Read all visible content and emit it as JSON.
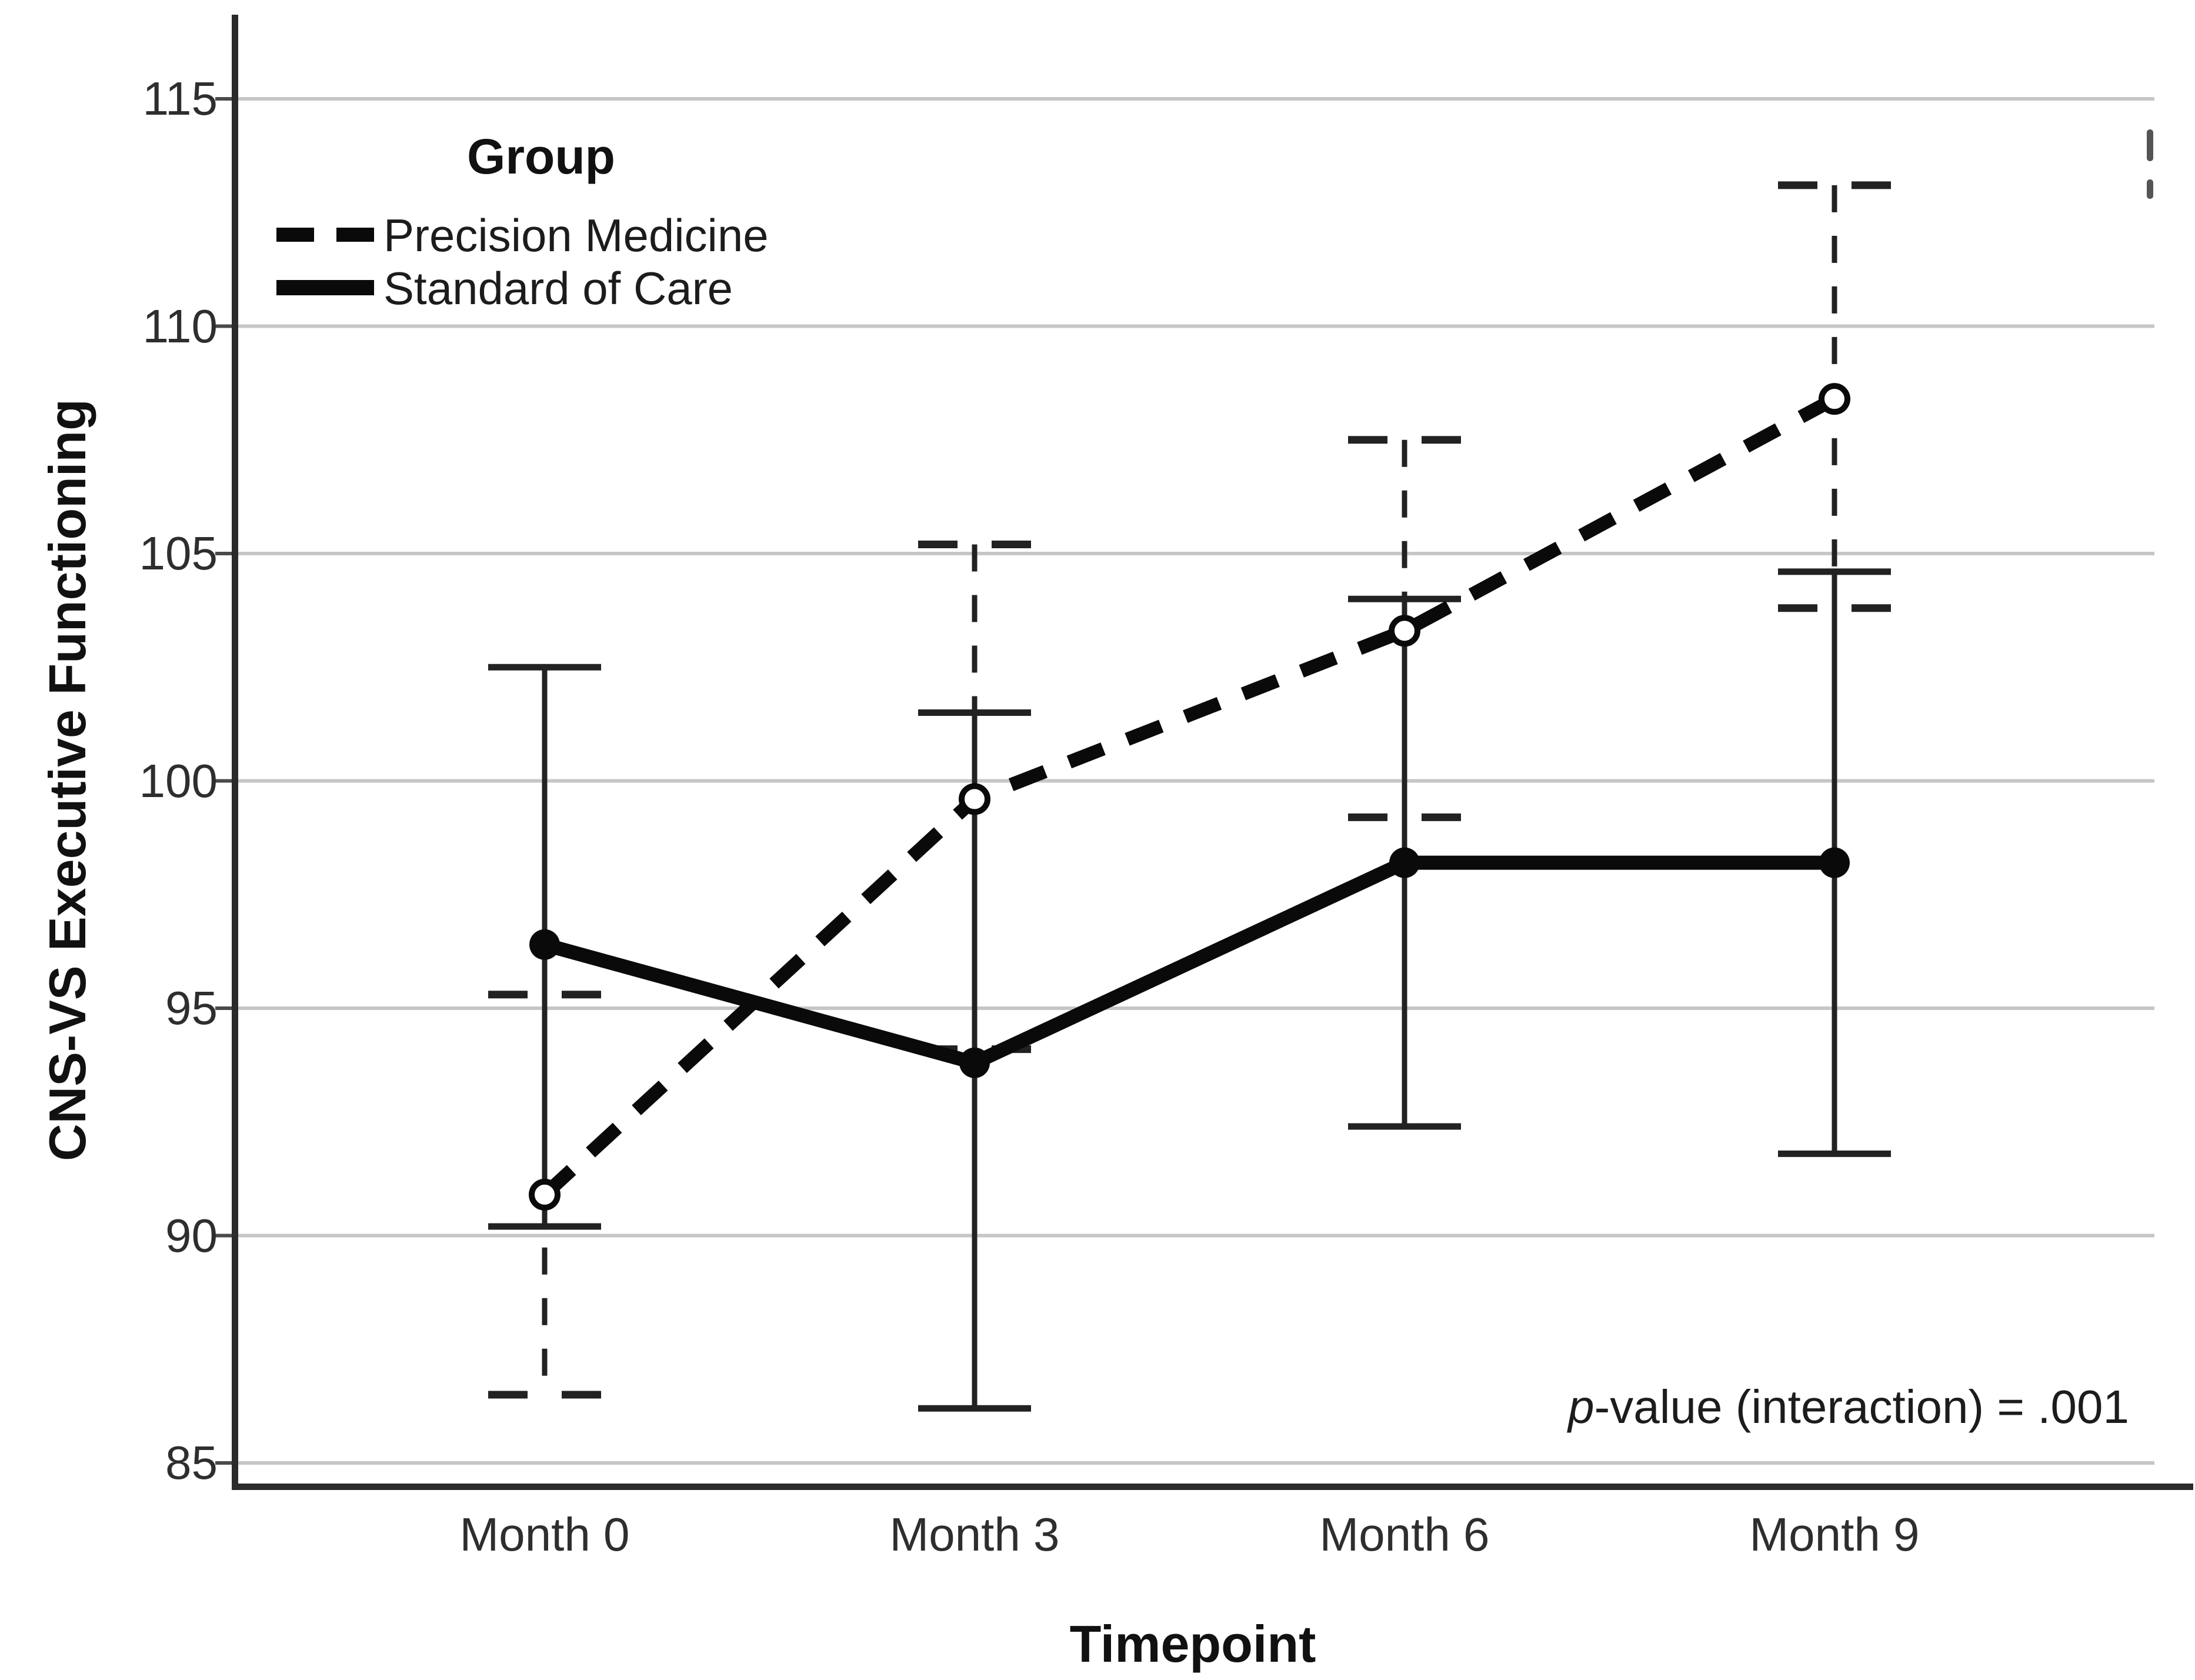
{
  "chart_data": {
    "type": "line",
    "title": "",
    "xlabel": "Timepoint",
    "ylabel": "CNS-VS Executive Functioning",
    "categories": [
      "Month 0",
      "Month 3",
      "Month 6",
      "Month 9"
    ],
    "ylim": [
      85,
      115
    ],
    "yticks": [
      115,
      110,
      105,
      100,
      95,
      90,
      85
    ],
    "grid": "horizontal",
    "legend_title": "Group",
    "legend_position": "top-left-inside",
    "series": [
      {
        "name": "Precision Medicine",
        "line_style": "dashed",
        "marker": "open-circle",
        "means": [
          90.9,
          99.6,
          103.3,
          108.4
        ],
        "ci_lower": [
          86.5,
          94.1,
          99.2,
          103.8
        ],
        "ci_upper": [
          95.3,
          105.2,
          107.5,
          113.1
        ]
      },
      {
        "name": "Standard of Care",
        "line_style": "solid",
        "marker": "filled-circle",
        "means": [
          96.4,
          93.8,
          98.2,
          98.2
        ],
        "ci_lower": [
          90.2,
          86.2,
          92.4,
          91.8
        ],
        "ci_upper": [
          102.5,
          101.5,
          104.0,
          104.6
        ]
      }
    ],
    "annotation": {
      "p_italic": "p",
      "rest": "-value (interaction) = .001"
    }
  },
  "colors": {
    "background": "#ffffff",
    "series_line": "#0a0a0a",
    "error_bar": "#222222",
    "gridline": "#c6c6c6",
    "axis": "#2b2b2b",
    "text": "#1c1c1c"
  }
}
